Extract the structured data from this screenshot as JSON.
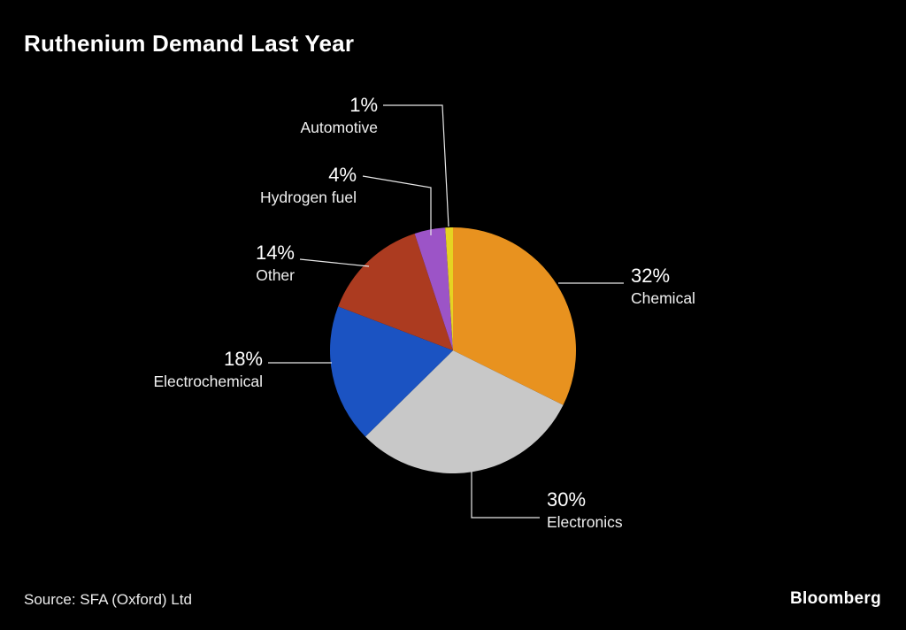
{
  "title": "Ruthenium Demand Last Year",
  "source": "Source: SFA (Oxford) Ltd",
  "branding": "Bloomberg",
  "chart_data": {
    "type": "pie",
    "title": "Ruthenium Demand Last Year",
    "background": "#000000",
    "direction": "clockwise",
    "start_angle_deg": 0,
    "legend_position": "callout-labels",
    "series": [
      {
        "name": "Chemical",
        "value": 32,
        "label": "32%",
        "color": "#E8921F"
      },
      {
        "name": "Electronics",
        "value": 30,
        "label": "30%",
        "color": "#C8C8C8"
      },
      {
        "name": "Electrochemical",
        "value": 18,
        "label": "18%",
        "color": "#1B53C2"
      },
      {
        "name": "Other",
        "value": 14,
        "label": "14%",
        "color": "#AC3B20"
      },
      {
        "name": "Hydrogen fuel",
        "value": 4,
        "label": "4%",
        "color": "#9C54C7"
      },
      {
        "name": "Automotive",
        "value": 1,
        "label": "1%",
        "color": "#E5D322"
      }
    ]
  }
}
